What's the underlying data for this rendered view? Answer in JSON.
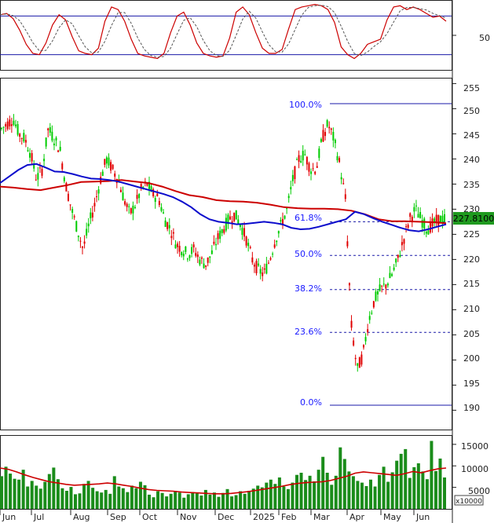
{
  "chart_data": [
    {
      "type": "line",
      "panel": "oscillator",
      "y_ticks": [
        "50"
      ],
      "y_range": [
        0,
        100
      ],
      "reference_lines": [
        80,
        20
      ],
      "colors": {
        "main": "#cc0000",
        "signal": "#cc0000",
        "ref": "#1a1aa8"
      },
      "series": [
        {
          "values": [
            82,
            84,
            76,
            58,
            36,
            22,
            20,
            38,
            66,
            82,
            74,
            48,
            26,
            22,
            20,
            30,
            72,
            94,
            90,
            72,
            44,
            22,
            18,
            16,
            14,
            22,
            54,
            80,
            86,
            66,
            38,
            22,
            18,
            16,
            18,
            46,
            86,
            94,
            82,
            54,
            30,
            22,
            22,
            28,
            60,
            90,
            94,
            96,
            98,
            96,
            90,
            70,
            32,
            20,
            14,
            22,
            36,
            40,
            44,
            74,
            94,
            96,
            90,
            94,
            90,
            84,
            78,
            80,
            72
          ]
        }
      ]
    },
    {
      "type": "candlestick",
      "panel": "price",
      "last_price_label": "227.8100",
      "y_ticks": [
        "255",
        "250",
        "245",
        "240",
        "235",
        "230",
        "225",
        "220",
        "215",
        "210",
        "205",
        "200",
        "195",
        "190"
      ],
      "y_range": [
        186,
        256
      ],
      "x_ticks": [
        "Jun",
        "Jul",
        "Aug",
        "Sep",
        "Oct",
        "Nov",
        "Dec",
        "2025",
        "Feb",
        "Mar",
        "Apr",
        "May",
        "Jun"
      ],
      "colors": {
        "up": "#00cc00",
        "down": "#e00000",
        "ma_short": "#0b0bcc",
        "ma_long": "#cc0000",
        "fib": "#1a1aa8"
      },
      "fibonacci": [
        {
          "label": "100.0%",
          "value": 251.0
        },
        {
          "label": "61.8%",
          "value": 227.5
        },
        {
          "label": "50.0%",
          "value": 220.8
        },
        {
          "label": "38.2%",
          "value": 214.0
        },
        {
          "label": "23.6%",
          "value": 205.5
        },
        {
          "label": "0.0%",
          "value": 191.0
        }
      ],
      "close": [
        246,
        247,
        248,
        245,
        244,
        241,
        236,
        238,
        246,
        244,
        242,
        235,
        230,
        226,
        222,
        227,
        231,
        236,
        240,
        238,
        236,
        232,
        229,
        231,
        234,
        235,
        233,
        232,
        228,
        226,
        223,
        222,
        221,
        222,
        220,
        219,
        221,
        224,
        226,
        228,
        229,
        227,
        224,
        220,
        218,
        217,
        220,
        224,
        227,
        230,
        236,
        240,
        241,
        238,
        238,
        244,
        247,
        244,
        239,
        232,
        207,
        198,
        201,
        208,
        212,
        214,
        215,
        217,
        220,
        224,
        228,
        230,
        228,
        226,
        227,
        228,
        228
      ],
      "ma_short": [
        235.2,
        236.5,
        237.8,
        238.8,
        239.0,
        238.3,
        237.5,
        237.4,
        237.0,
        236.5,
        236.1,
        236.0,
        235.8,
        235.5,
        235.0,
        234.5,
        234.0,
        233.5,
        233.0,
        232.4,
        231.5,
        230.4,
        229.0,
        228.0,
        227.5,
        227.3,
        227.0,
        227.1,
        227.3,
        227.5,
        227.3,
        227.0,
        226.3,
        226.0,
        226.1,
        226.5,
        227.0,
        227.5,
        228.0,
        229.5,
        229.0,
        228.2,
        227.5,
        226.9,
        226.3,
        225.8,
        225.6,
        226.0,
        226.5,
        227.0
      ],
      "ma_long": [
        234.5,
        234.3,
        234.0,
        233.8,
        234.3,
        234.8,
        235.4,
        235.5,
        235.6,
        235.8,
        235.5,
        235.2,
        234.5,
        233.6,
        232.8,
        232.4,
        231.8,
        231.6,
        231.5,
        231.3,
        230.9,
        230.4,
        230.2,
        230.1,
        230.1,
        230.0,
        229.7,
        229.0,
        228.0,
        227.6,
        227.6,
        227.5,
        227.4,
        227.2
      ]
    },
    {
      "type": "bar",
      "panel": "volume",
      "multiplier_label": "x10000",
      "y_ticks": [
        "15000",
        "10000",
        "5000"
      ],
      "y_range": [
        0,
        16800
      ],
      "colors": {
        "bars": "#1a8c1a",
        "ma": "#cc0000"
      },
      "volumes": [
        7600,
        9800,
        8200,
        7000,
        6800,
        9100,
        5200,
        6500,
        5400,
        4700,
        6300,
        8100,
        9600,
        6900,
        4800,
        4200,
        5100,
        3400,
        3600,
        5800,
        6500,
        4900,
        4100,
        3800,
        4400,
        3500,
        7600,
        5200,
        4800,
        3900,
        5400,
        4800,
        6300,
        5500,
        3300,
        2700,
        4100,
        3700,
        2900,
        3500,
        4200,
        3800,
        2600,
        3400,
        3900,
        3600,
        3100,
        4400,
        3300,
        3800,
        2800,
        3700,
        4600,
        2900,
        3200,
        4100,
        3500,
        4200,
        4700,
        5400,
        5000,
        6100,
        6800,
        5800,
        7300,
        5200,
        4600,
        6100,
        7900,
        8400,
        6700,
        7700,
        6400,
        9100,
        12100,
        8400,
        5600,
        7700,
        14300,
        11600,
        8700,
        7600,
        6500,
        6100,
        5300,
        6800,
        5200,
        7900,
        9800,
        6300,
        8500,
        11200,
        12800,
        13900,
        7200,
        9700,
        10600,
        8700,
        6900,
        15800,
        8800,
        11700,
        7300
      ],
      "ma": [
        9500,
        9200,
        8600,
        7900,
        7300,
        6800,
        6300,
        6000,
        5700,
        5500,
        5600,
        5700,
        5800,
        6000,
        5800,
        5500,
        5200,
        4800,
        4500,
        4300,
        4200,
        4100,
        3900,
        3800,
        3700,
        3600,
        3500,
        3500,
        3600,
        3800,
        4000,
        4300,
        4600,
        4900,
        5200,
        5600,
        5900,
        6100,
        6200,
        6300,
        6600,
        7100,
        7600,
        8300,
        8600,
        8400,
        8200,
        8000,
        7800,
        8200,
        8700,
        8400,
        8900,
        9300,
        9500
      ]
    }
  ]
}
